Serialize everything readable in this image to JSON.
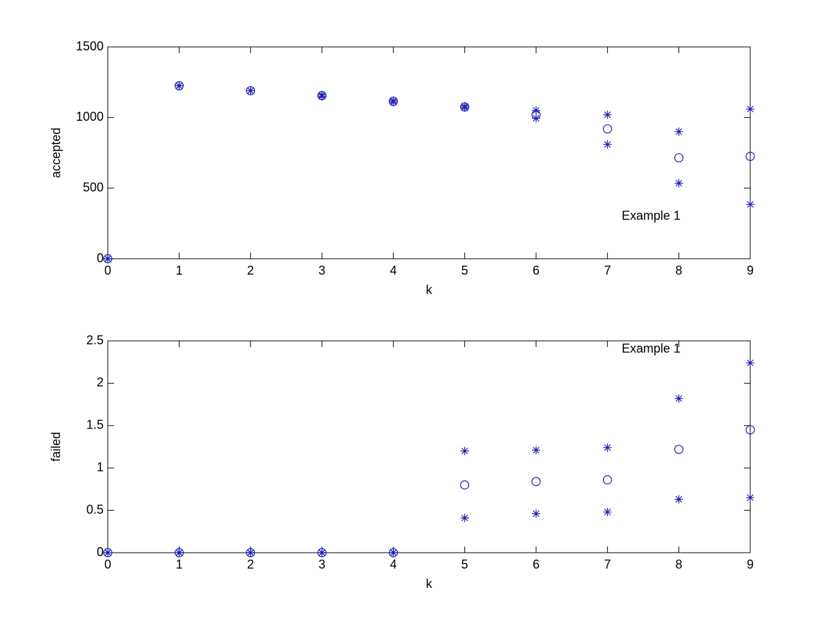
{
  "chart_data": [
    {
      "type": "scatter",
      "xlabel": "k",
      "ylabel": "accepted",
      "annotation": "Example 1",
      "x": [
        0,
        1,
        2,
        3,
        4,
        5,
        6,
        7,
        8,
        9
      ],
      "series": [
        {
          "marker": "o",
          "color": "#1c1cb4",
          "values": [
            0,
            1225,
            1190,
            1155,
            1115,
            1075,
            1020,
            920,
            715,
            725
          ]
        },
        {
          "marker": "*",
          "color": "#1c1cb4",
          "values": [
            0,
            1225,
            1190,
            1160,
            1120,
            1080,
            1050,
            1020,
            900,
            1060
          ]
        },
        {
          "marker": "*",
          "color": "#1c1cb4",
          "values": [
            0,
            1225,
            1190,
            1150,
            1110,
            1070,
            995,
            810,
            535,
            385
          ]
        }
      ],
      "xlim": [
        0,
        9
      ],
      "ylim": [
        0,
        1500
      ],
      "xticks": [
        0,
        1,
        2,
        3,
        4,
        5,
        6,
        7,
        8,
        9
      ],
      "yticks": [
        0,
        500,
        1000,
        1500
      ]
    },
    {
      "type": "scatter",
      "xlabel": "k",
      "ylabel": "failed",
      "annotation": "Example 1",
      "x": [
        0,
        1,
        2,
        3,
        4,
        5,
        6,
        7,
        8,
        9
      ],
      "series": [
        {
          "marker": "o",
          "color": "#1c1cb4",
          "values": [
            0,
            0,
            0,
            0,
            0,
            0.8,
            0.84,
            0.86,
            1.22,
            1.45
          ]
        },
        {
          "marker": "*",
          "color": "#1c1cb4",
          "values": [
            0,
            0,
            0,
            0,
            0,
            1.2,
            1.21,
            1.24,
            1.82,
            2.24
          ]
        },
        {
          "marker": "*",
          "color": "#1c1cb4",
          "values": [
            0,
            0,
            0,
            0,
            0,
            0.41,
            0.46,
            0.48,
            0.63,
            0.65
          ]
        }
      ],
      "xlim": [
        0,
        9
      ],
      "ylim": [
        0,
        2.5
      ],
      "xticks": [
        0,
        1,
        2,
        3,
        4,
        5,
        6,
        7,
        8,
        9
      ],
      "yticks": [
        0,
        0.5,
        1,
        1.5,
        2,
        2.5
      ]
    }
  ]
}
